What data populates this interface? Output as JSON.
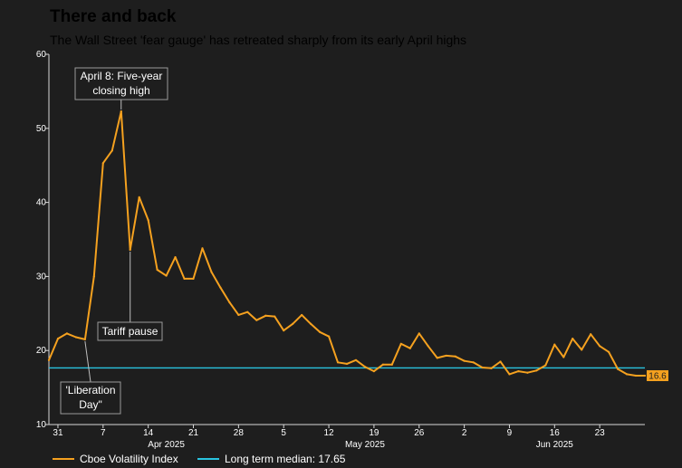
{
  "chart_data": {
    "type": "line",
    "title": "There and back",
    "subtitle": "The Wall Street 'fear gauge' has retreated sharply from its early April highs",
    "ylim": [
      10,
      60
    ],
    "yticks": [
      10,
      20,
      30,
      40,
      50,
      60
    ],
    "xlabel": "",
    "ylabel": "",
    "x_ticks": [
      {
        "i": 1,
        "label": "31"
      },
      {
        "i": 6,
        "label": "7"
      },
      {
        "i": 11,
        "label": "14"
      },
      {
        "i": 16,
        "label": "21"
      },
      {
        "i": 21,
        "label": "28"
      },
      {
        "i": 26,
        "label": "5"
      },
      {
        "i": 31,
        "label": "12"
      },
      {
        "i": 36,
        "label": "19"
      },
      {
        "i": 41,
        "label": "26"
      },
      {
        "i": 46,
        "label": "2"
      },
      {
        "i": 51,
        "label": "9"
      },
      {
        "i": 56,
        "label": "16"
      },
      {
        "i": 61,
        "label": "23"
      }
    ],
    "months": [
      {
        "i": 13,
        "label": "Apr 2025"
      },
      {
        "i": 35,
        "label": "May 2025"
      },
      {
        "i": 56,
        "label": "Jun 2025"
      }
    ],
    "series": [
      {
        "name": "Cboe Volatility Index",
        "color": "#f5a11f",
        "values": [
          18.7,
          21.6,
          22.3,
          21.8,
          21.5,
          30.0,
          45.3,
          47.0,
          52.3,
          33.6,
          40.7,
          37.6,
          30.9,
          30.1,
          32.6,
          29.7,
          29.7,
          33.8,
          30.6,
          28.5,
          26.5,
          24.8,
          25.2,
          24.1,
          24.7,
          24.6,
          22.7,
          23.6,
          24.8,
          23.6,
          22.5,
          21.9,
          18.4,
          18.2,
          18.7,
          17.8,
          17.2,
          18.1,
          18.1,
          20.9,
          20.3,
          22.3,
          20.6,
          19.0,
          19.3,
          19.2,
          18.6,
          18.4,
          17.7,
          17.6,
          18.5,
          16.8,
          17.2,
          17.0,
          17.3,
          18.0,
          20.8,
          19.1,
          21.6,
          20.1,
          22.2,
          20.6,
          19.8,
          17.5,
          16.8,
          16.6,
          16.6
        ]
      }
    ],
    "median": {
      "name": "Long term median: 17.65",
      "value": 17.65,
      "color": "#29c4e0"
    },
    "last_value_label": "16.6",
    "annotations": [
      {
        "key": "high",
        "i": 8,
        "lines": [
          "April 8: Five-year",
          "closing high"
        ]
      },
      {
        "key": "pause",
        "i": 9,
        "lines": [
          "Tariff pause"
        ]
      },
      {
        "key": "liberation",
        "i": 4,
        "lines": [
          "'Liberation",
          "Day\""
        ]
      }
    ],
    "legend": [
      {
        "label": "Cboe Volatility Index",
        "color": "#f5a11f"
      },
      {
        "label": "Long term median: 17.65",
        "color": "#29c4e0"
      }
    ]
  }
}
